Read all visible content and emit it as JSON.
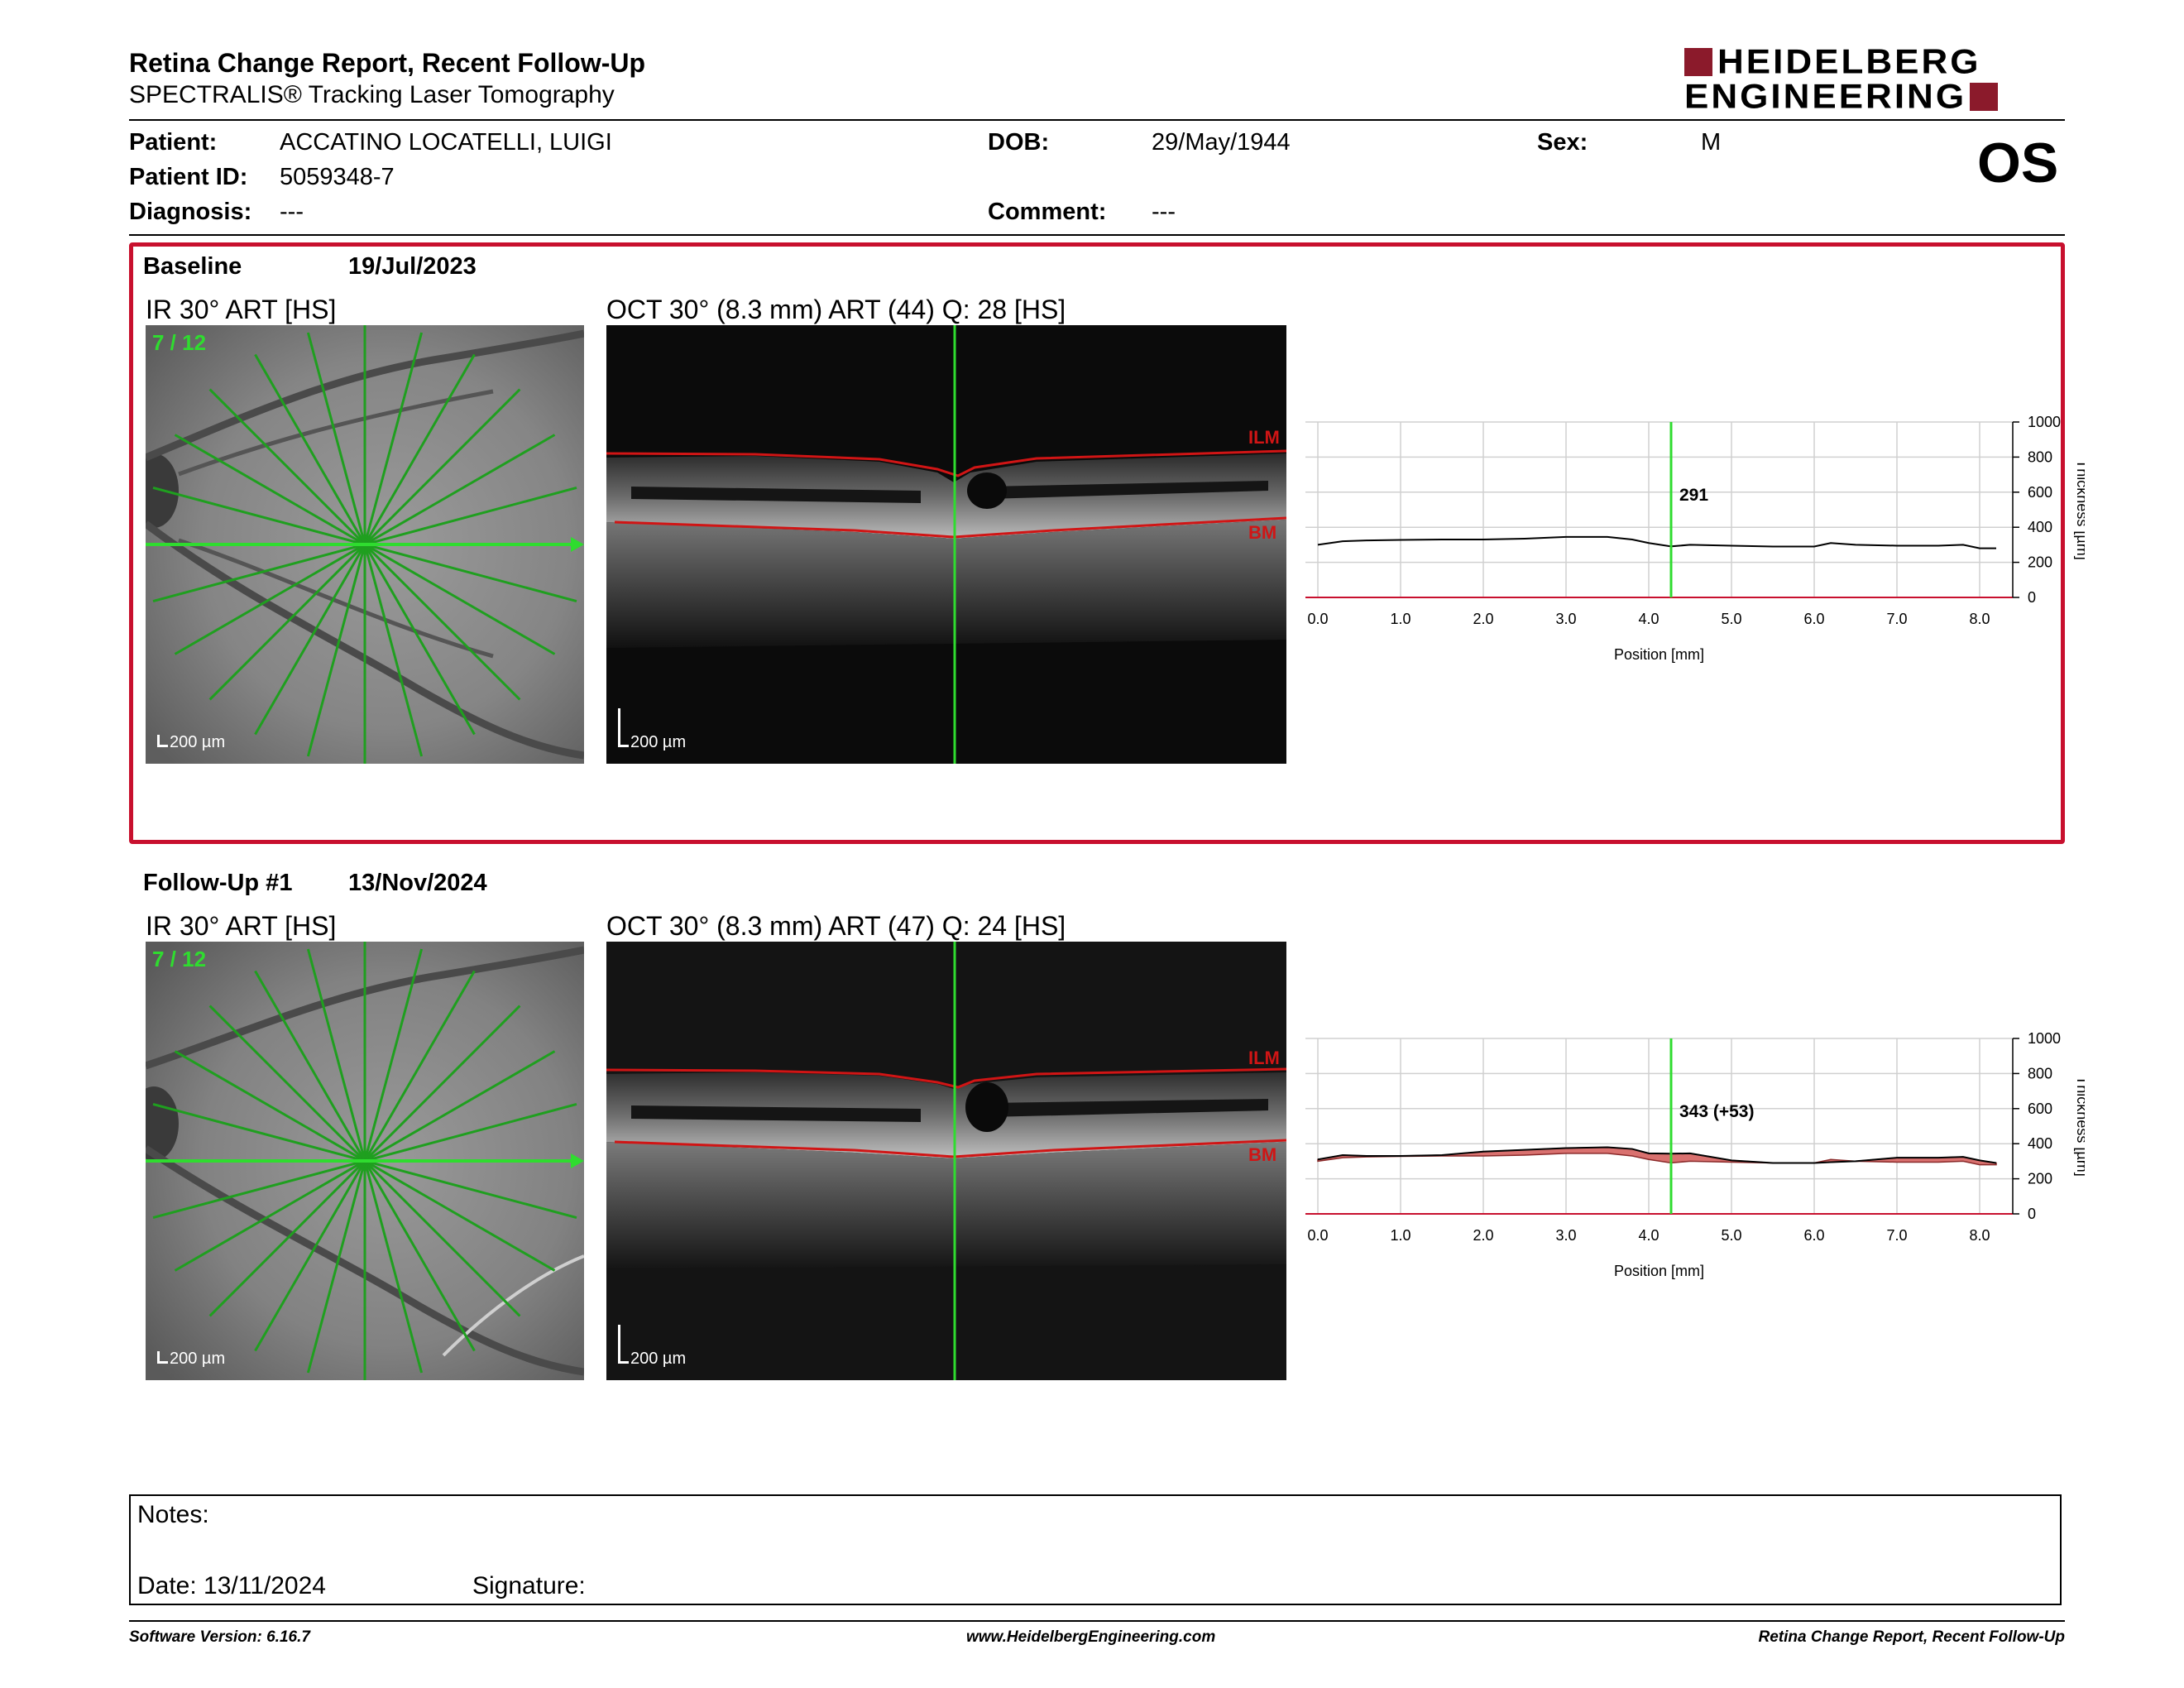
{
  "header": {
    "title": "Retina Change Report, Recent Follow-Up",
    "subtitle": "SPECTRALIS® Tracking Laser Tomography",
    "logo_line1": "HEIDELBERG",
    "logo_line2": "ENGINEERING",
    "eye": "OS"
  },
  "patient": {
    "patient_label": "Patient:",
    "patient_value": "ACCATINO LOCATELLI, LUIGI",
    "id_label": "Patient ID:",
    "id_value": "5059348-7",
    "diagnosis_label": "Diagnosis:",
    "diagnosis_value": "---",
    "dob_label": "DOB:",
    "dob_value": "29/May/1944",
    "comment_label": "Comment:",
    "comment_value": "---",
    "sex_label": "Sex:",
    "sex_value": "M"
  },
  "sections": [
    {
      "name": "Baseline",
      "date": "19/Jul/2023",
      "ir_title": "IR 30° ART [HS]",
      "oct_title": "OCT 30° (8.3 mm) ART (44) Q: 28 [HS]",
      "slice_label": "7 / 12",
      "scale_ir": "200 µm",
      "scale_oct": "200 µm",
      "ilm": "ILM",
      "bm": "BM",
      "readout": "291"
    },
    {
      "name": "Follow-Up #1",
      "date": "13/Nov/2024",
      "ir_title": "IR 30° ART [HS]",
      "oct_title": "OCT 30° (8.3 mm) ART (47) Q: 24 [HS]",
      "slice_label": "7 / 12",
      "scale_ir": "200 µm",
      "scale_oct": "200 µm",
      "ilm": "ILM",
      "bm": "BM",
      "readout": "343 (+53)"
    }
  ],
  "chart_data": [
    {
      "type": "line",
      "xlabel": "Position [mm]",
      "ylabel": "Thickness [µm]",
      "xlim": [
        -0.15,
        8.4
      ],
      "ylim": [
        0,
        1000
      ],
      "xticks": [
        "0.0",
        "1.0",
        "2.0",
        "3.0",
        "4.0",
        "5.0",
        "6.0",
        "7.0",
        "8.0"
      ],
      "yticks": [
        "0",
        "200",
        "400",
        "600",
        "800",
        "1000"
      ],
      "grid": true,
      "cursor_x": 4.27,
      "x": [
        0.0,
        0.3,
        0.6,
        1.0,
        1.5,
        2.0,
        2.5,
        3.0,
        3.5,
        3.8,
        4.0,
        4.27,
        4.5,
        5.0,
        5.5,
        6.0,
        6.2,
        6.5,
        7.0,
        7.5,
        7.8,
        8.0,
        8.2
      ],
      "series": [
        {
          "values": [
            300,
            320,
            325,
            328,
            330,
            330,
            335,
            345,
            345,
            330,
            310,
            291,
            300,
            295,
            290,
            290,
            310,
            300,
            295,
            295,
            300,
            280,
            280
          ]
        }
      ]
    },
    {
      "type": "area",
      "xlabel": "Position [mm]",
      "ylabel": "Thickness [µm]",
      "xlim": [
        -0.15,
        8.4
      ],
      "ylim": [
        0,
        1000
      ],
      "xticks": [
        "0.0",
        "1.0",
        "2.0",
        "3.0",
        "4.0",
        "5.0",
        "6.0",
        "7.0",
        "8.0"
      ],
      "yticks": [
        "0",
        "200",
        "400",
        "600",
        "800",
        "1000"
      ],
      "grid": true,
      "cursor_x": 4.27,
      "x": [
        0.0,
        0.3,
        0.6,
        1.0,
        1.5,
        2.0,
        2.5,
        3.0,
        3.5,
        3.8,
        4.0,
        4.27,
        4.5,
        5.0,
        5.5,
        6.0,
        6.2,
        6.5,
        7.0,
        7.5,
        7.8,
        8.0,
        8.2
      ],
      "series": [
        {
          "values": [
            300,
            320,
            325,
            328,
            330,
            330,
            335,
            345,
            345,
            330,
            310,
            291,
            300,
            295,
            290,
            290,
            310,
            300,
            295,
            295,
            300,
            280,
            280
          ]
        },
        {
          "values": [
            310,
            335,
            330,
            330,
            335,
            355,
            365,
            375,
            380,
            370,
            345,
            343,
            345,
            305,
            290,
            290,
            295,
            300,
            320,
            320,
            325,
            305,
            290
          ]
        }
      ],
      "colors": {
        "increase": "#d9716f"
      }
    }
  ],
  "notes": {
    "notes_label": "Notes:",
    "date_label": "Date: 13/11/2024",
    "signature_label": "Signature:"
  },
  "footer": {
    "software": "Software Version: 6.16.7",
    "website": "www.HeidelbergEngineering.com",
    "report": "Retina Change Report, Recent Follow-Up"
  }
}
